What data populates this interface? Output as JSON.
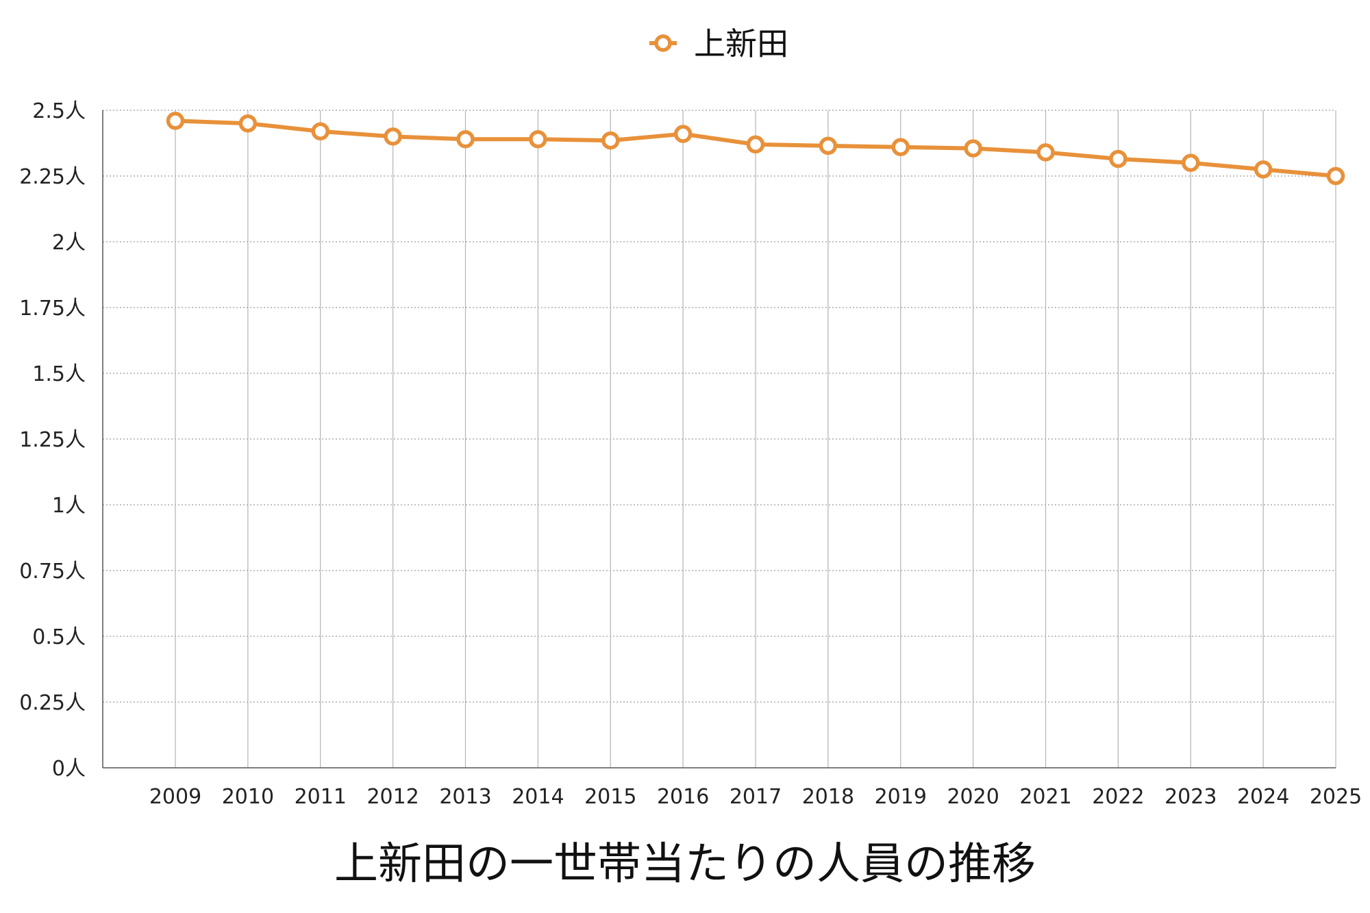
{
  "chart_data": {
    "type": "line",
    "title": "上新田の一世帯当たりの人員の推移",
    "xlabel": "",
    "ylabel": "",
    "x": [
      "2009",
      "2010",
      "2011",
      "2012",
      "2013",
      "2014",
      "2015",
      "2016",
      "2017",
      "2018",
      "2019",
      "2020",
      "2021",
      "2022",
      "2023",
      "2024",
      "2025"
    ],
    "series": [
      {
        "name": "上新田",
        "color": "#e8913a",
        "values": [
          2.46,
          2.45,
          2.42,
          2.4,
          2.39,
          2.39,
          2.385,
          2.41,
          2.37,
          2.365,
          2.36,
          2.355,
          2.34,
          2.315,
          2.3,
          2.275,
          2.25
        ]
      }
    ],
    "ylim": [
      0,
      2.5
    ],
    "yticks": [
      0,
      0.25,
      0.5,
      0.75,
      1,
      1.25,
      1.5,
      1.75,
      2,
      2.25,
      2.5
    ],
    "ytick_labels": [
      "0人",
      "0.25人",
      "0.5人",
      "0.75人",
      "1人",
      "1.25人",
      "1.5人",
      "1.75人",
      "2人",
      "2.25人",
      "2.5人"
    ],
    "grid": true,
    "legend_position": "top-center"
  }
}
